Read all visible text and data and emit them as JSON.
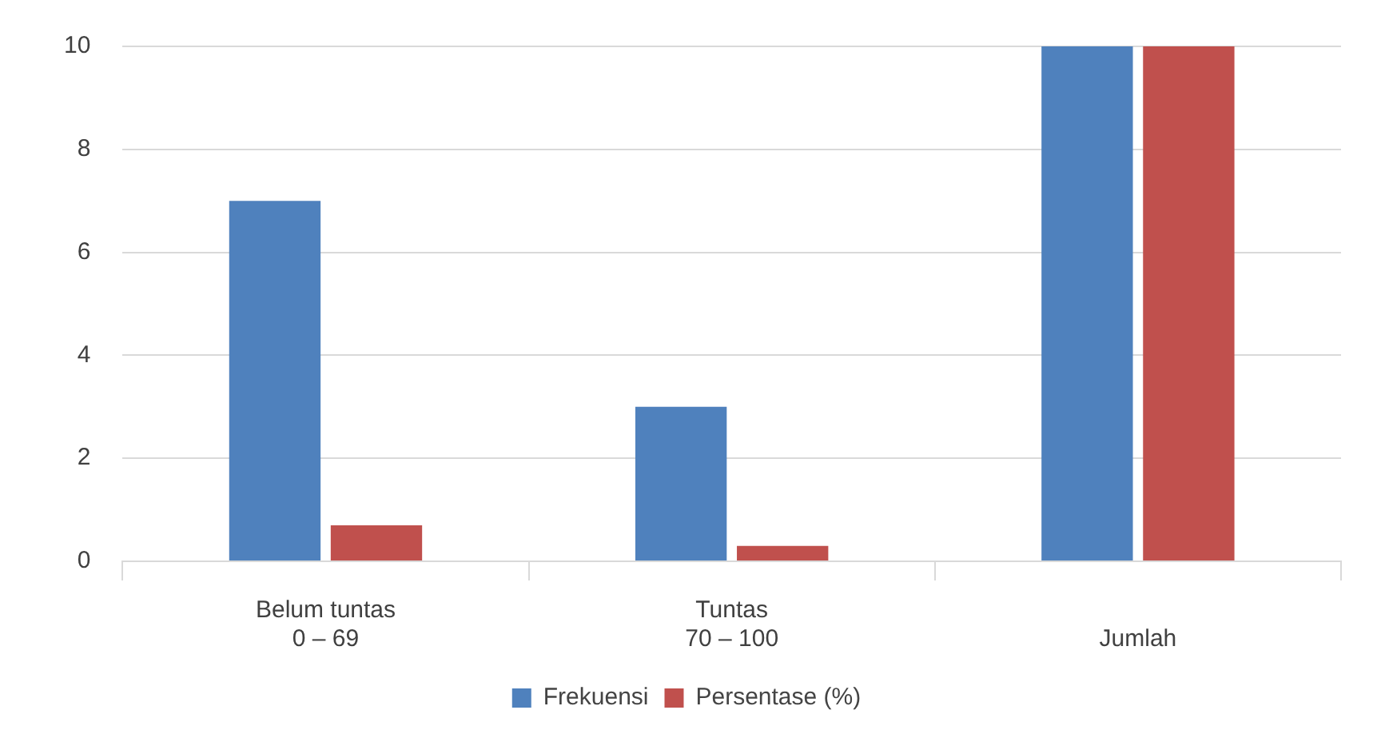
{
  "chart_data": {
    "type": "bar",
    "categories": [
      "Belum tuntas\n0 – 69",
      "Tuntas\n70 – 100",
      "\nJumlah"
    ],
    "series": [
      {
        "name": "Frekuensi",
        "color": "#4f81bd",
        "values": [
          7,
          3,
          10
        ]
      },
      {
        "name": "Persentase (%)",
        "color": "#c0504d",
        "values": [
          0.7,
          0.3,
          10
        ]
      }
    ],
    "ylim": [
      0,
      10
    ],
    "yticks": [
      0,
      2,
      4,
      6,
      8,
      10
    ],
    "grid": "y",
    "legend": "bottom"
  }
}
